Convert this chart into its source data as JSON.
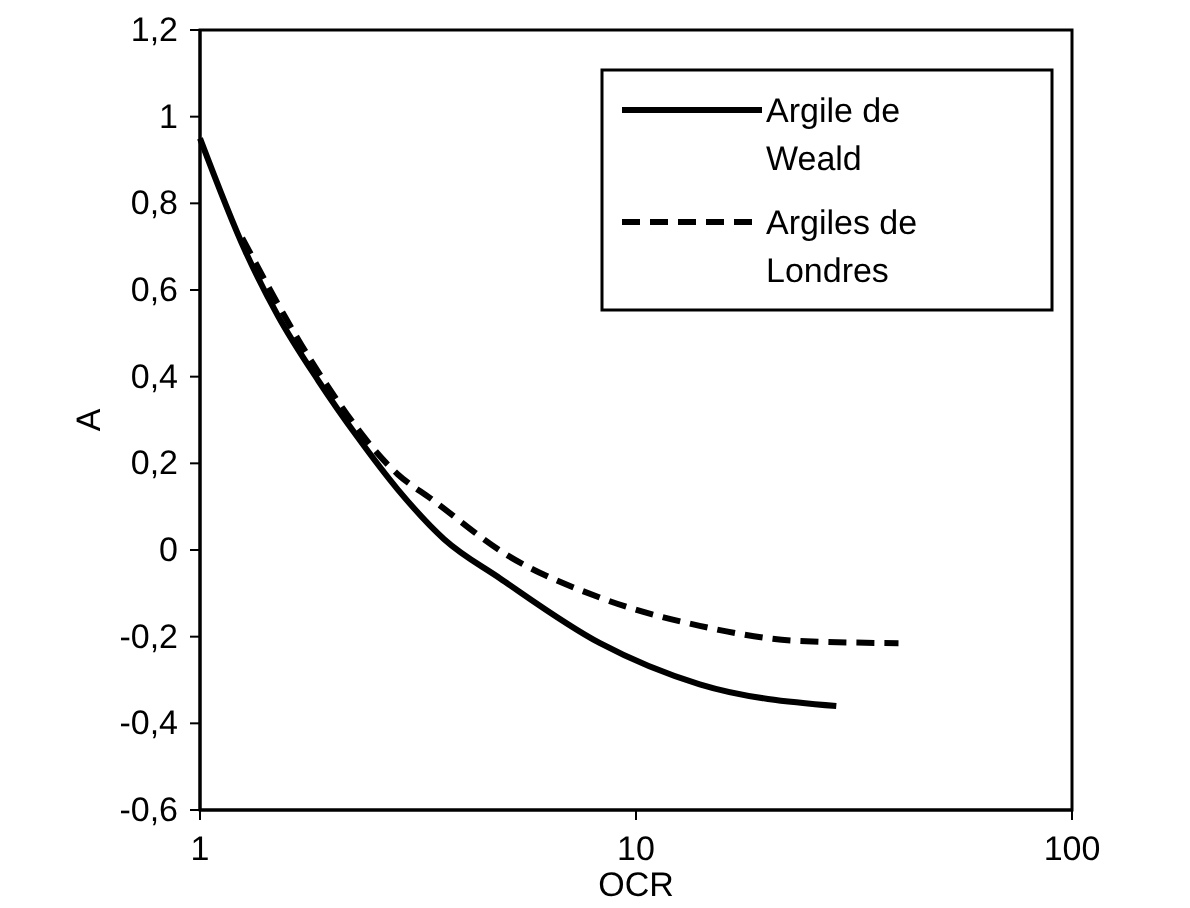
{
  "chart_data": {
    "type": "line",
    "xlabel": "OCR",
    "ylabel": "A",
    "log": "x",
    "xlim": [
      1,
      100
    ],
    "xticks": [
      1,
      10,
      100
    ],
    "ylim": [
      -0.6,
      1.2
    ],
    "yticks": [
      {
        "value": -0.6,
        "label": "-0,6"
      },
      {
        "value": -0.4,
        "label": "-0,4"
      },
      {
        "value": -0.2,
        "label": "-0,2"
      },
      {
        "value": 0,
        "label": "0"
      },
      {
        "value": 0.2,
        "label": "0,2"
      },
      {
        "value": 0.4,
        "label": "0,4"
      },
      {
        "value": 0.6,
        "label": "0,6"
      },
      {
        "value": 0.8,
        "label": "0,8"
      },
      {
        "value": 1,
        "label": "1"
      },
      {
        "value": 1.2,
        "label": "1,2"
      }
    ],
    "grid": false,
    "legend": "top right",
    "marker": "none",
    "series": [
      {
        "name": "Argile de Weald",
        "color": "#000000",
        "line_style": "solid",
        "x": [
          1,
          1.27,
          1.51,
          1.87,
          2.3,
          2.84,
          3.63,
          4.87,
          8.27,
          14,
          28.8
        ],
        "values": [
          0.95,
          0.69,
          0.54,
          0.39,
          0.26,
          0.14,
          0.025,
          -0.065,
          -0.215,
          -0.31,
          -0.36
        ]
      },
      {
        "name": "Argiles de Londres",
        "color": "#000000",
        "line_style": "dashed",
        "x": [
          1.25,
          1.87,
          2.84,
          3.4,
          5.03,
          8.27,
          14,
          23.7,
          40
        ],
        "values": [
          0.72,
          0.41,
          0.175,
          0.117,
          -0.01,
          -0.11,
          -0.175,
          -0.21,
          -0.215
        ]
      }
    ]
  }
}
